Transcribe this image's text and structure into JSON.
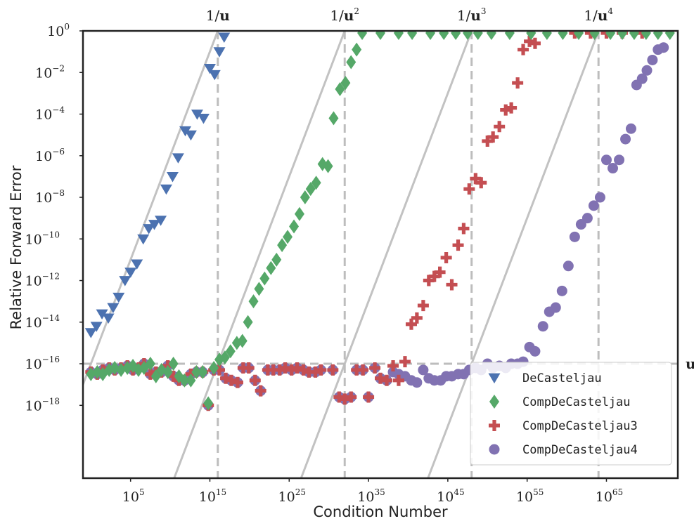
{
  "chart_data": {
    "type": "scatter",
    "xlabel": "Condition Number",
    "ylabel": "Relative Forward Error",
    "xscale": "log",
    "yscale": "log",
    "xlim_exp": [
      -1,
      74
    ],
    "ylim_exp": [
      -21.5,
      0
    ],
    "x_tick_exponents": [
      5,
      15,
      25,
      35,
      45,
      55,
      65
    ],
    "y_tick_exponents": [
      0,
      -2,
      -4,
      -6,
      -8,
      -10,
      -12,
      -14,
      -16,
      -18
    ],
    "grid": false,
    "legend_position": "lower-right",
    "reference_lines": {
      "vertical": [
        {
          "label_base": "1/",
          "label_sym": "u",
          "label_sup": "",
          "x_exp": 16
        },
        {
          "label_base": "1/",
          "label_sym": "u",
          "label_sup": "2",
          "x_exp": 32
        },
        {
          "label_base": "1/",
          "label_sym": "u",
          "label_sup": "3",
          "x_exp": 48
        },
        {
          "label_base": "1/",
          "label_sym": "u",
          "label_sup": "4",
          "x_exp": 64
        }
      ],
      "horizontal": {
        "label": "u",
        "y_exp": -16
      },
      "diagonal_offsets": [
        -16,
        -32,
        -48,
        -64
      ]
    },
    "series": [
      {
        "name": "DeCasteljau",
        "marker": "triangle-down",
        "color": "#4c72b0",
        "points": [
          [
            0.0,
            -14.5
          ],
          [
            0.7,
            -14.2
          ],
          [
            1.4,
            -13.6
          ],
          [
            2.2,
            -13.8
          ],
          [
            2.8,
            -13.3
          ],
          [
            3.5,
            -12.8
          ],
          [
            4.3,
            -12.0
          ],
          [
            5.0,
            -11.6
          ],
          [
            5.8,
            -11.2
          ],
          [
            6.6,
            -10.0
          ],
          [
            7.3,
            -9.5
          ],
          [
            8.0,
            -9.3
          ],
          [
            8.8,
            -9.1
          ],
          [
            9.5,
            -7.6
          ],
          [
            10.3,
            -7.0
          ],
          [
            11.0,
            -6.1
          ],
          [
            11.9,
            -4.8
          ],
          [
            12.6,
            -5.0
          ],
          [
            13.4,
            -4.0
          ],
          [
            14.2,
            -4.2
          ],
          [
            15.0,
            -1.8
          ],
          [
            15.6,
            -2.1
          ],
          [
            16.2,
            -1.0
          ],
          [
            16.8,
            -0.3
          ]
        ]
      },
      {
        "name": "CompDeCasteljau",
        "marker": "diamond",
        "color": "#55a868",
        "points": [
          [
            0.0,
            -16.5
          ],
          [
            0.8,
            -16.4
          ],
          [
            1.5,
            -16.5
          ],
          [
            2.3,
            -16.3
          ],
          [
            3.0,
            -16.2
          ],
          [
            3.8,
            -16.3
          ],
          [
            4.6,
            -16.2
          ],
          [
            5.3,
            -16.1
          ],
          [
            6.0,
            -16.3
          ],
          [
            6.7,
            -16.2
          ],
          [
            7.5,
            -16.0
          ],
          [
            8.2,
            -16.6
          ],
          [
            8.9,
            -16.3
          ],
          [
            9.7,
            -16.4
          ],
          [
            10.4,
            -16.0
          ],
          [
            11.1,
            -16.6
          ],
          [
            11.8,
            -16.8
          ],
          [
            12.6,
            -16.8
          ],
          [
            13.3,
            -16.4
          ],
          [
            14.1,
            -16.4
          ],
          [
            14.8,
            -17.9
          ],
          [
            15.5,
            -16.2
          ],
          [
            16.2,
            -15.8
          ],
          [
            16.9,
            -15.7
          ],
          [
            17.6,
            -15.4
          ],
          [
            18.4,
            -15.0
          ],
          [
            19.1,
            -14.9
          ],
          [
            19.8,
            -14.0
          ],
          [
            20.5,
            -13.0
          ],
          [
            21.2,
            -12.4
          ],
          [
            21.9,
            -11.9
          ],
          [
            22.7,
            -11.4
          ],
          [
            23.4,
            -11.0
          ],
          [
            24.1,
            -10.3
          ],
          [
            24.8,
            -9.9
          ],
          [
            25.6,
            -9.4
          ],
          [
            26.3,
            -8.8
          ],
          [
            27.0,
            -8.0
          ],
          [
            27.7,
            -7.6
          ],
          [
            28.4,
            -7.3
          ],
          [
            29.2,
            -6.4
          ],
          [
            29.9,
            -6.5
          ],
          [
            30.6,
            -4.2
          ],
          [
            31.4,
            -2.8
          ],
          [
            32.1,
            -2.5
          ],
          [
            32.8,
            -1.5
          ],
          [
            33.5,
            -0.9
          ],
          [
            34.2,
            -0.1
          ],
          [
            36.5,
            -0.1
          ],
          [
            38.8,
            -0.1
          ],
          [
            40.5,
            -0.1
          ],
          [
            42.8,
            -0.1
          ],
          [
            44.5,
            -0.1
          ],
          [
            46.0,
            -0.1
          ],
          [
            47.5,
            -0.1
          ],
          [
            48.8,
            -0.1
          ],
          [
            50.5,
            -0.1
          ],
          [
            52.8,
            -0.1
          ],
          [
            55.5,
            -0.1
          ],
          [
            57.5,
            -0.1
          ],
          [
            59.5,
            -0.1
          ],
          [
            61.5,
            -0.1
          ],
          [
            63.5,
            -0.1
          ],
          [
            65.5,
            -0.1
          ],
          [
            67.0,
            -0.1
          ],
          [
            68.5,
            -0.1
          ],
          [
            70.0,
            -0.1
          ],
          [
            71.5,
            -0.1
          ],
          [
            73.0,
            -0.1
          ]
        ]
      },
      {
        "name": "CompDeCasteljau3",
        "marker": "plus",
        "color": "#c44e52",
        "points": [
          [
            0.0,
            -16.4
          ],
          [
            0.8,
            -16.5
          ],
          [
            1.5,
            -16.3
          ],
          [
            2.3,
            -16.2
          ],
          [
            3.0,
            -16.3
          ],
          [
            3.8,
            -16.2
          ],
          [
            4.6,
            -16.1
          ],
          [
            5.3,
            -16.3
          ],
          [
            6.0,
            -16.2
          ],
          [
            6.7,
            -16.0
          ],
          [
            7.5,
            -16.5
          ],
          [
            8.2,
            -16.4
          ],
          [
            8.9,
            -16.4
          ],
          [
            9.7,
            -16.1
          ],
          [
            10.4,
            -16.6
          ],
          [
            11.1,
            -16.8
          ],
          [
            11.8,
            -16.8
          ],
          [
            12.6,
            -16.5
          ],
          [
            13.3,
            -16.4
          ],
          [
            14.1,
            -16.4
          ],
          [
            14.8,
            -18.0
          ],
          [
            15.5,
            -16.3
          ],
          [
            16.2,
            -16.3
          ],
          [
            17.0,
            -16.7
          ],
          [
            17.7,
            -16.8
          ],
          [
            18.5,
            -16.9
          ],
          [
            19.2,
            -16.2
          ],
          [
            19.9,
            -16.2
          ],
          [
            20.7,
            -16.8
          ],
          [
            21.4,
            -17.3
          ],
          [
            22.3,
            -16.3
          ],
          [
            23.0,
            -16.3
          ],
          [
            23.8,
            -16.3
          ],
          [
            24.5,
            -16.2
          ],
          [
            25.3,
            -16.3
          ],
          [
            26.0,
            -16.2
          ],
          [
            26.8,
            -16.3
          ],
          [
            27.5,
            -16.4
          ],
          [
            28.3,
            -16.4
          ],
          [
            29.0,
            -16.3
          ],
          [
            30.5,
            -16.3
          ],
          [
            31.3,
            -17.6
          ],
          [
            32.0,
            -17.7
          ],
          [
            32.8,
            -17.6
          ],
          [
            33.5,
            -16.3
          ],
          [
            34.3,
            -16.3
          ],
          [
            35.0,
            -17.6
          ],
          [
            35.8,
            -16.2
          ],
          [
            36.5,
            -16.7
          ],
          [
            37.3,
            -16.8
          ],
          [
            38.1,
            -16.1
          ],
          [
            38.8,
            -16.8
          ],
          [
            39.6,
            -15.9
          ],
          [
            40.4,
            -14.1
          ],
          [
            41.1,
            -13.8
          ],
          [
            41.9,
            -13.2
          ],
          [
            42.6,
            -12.0
          ],
          [
            43.3,
            -11.8
          ],
          [
            44.0,
            -11.6
          ],
          [
            44.8,
            -10.9
          ],
          [
            45.5,
            -12.2
          ],
          [
            46.3,
            -10.3
          ],
          [
            47.0,
            -9.5
          ],
          [
            47.7,
            -7.6
          ],
          [
            48.5,
            -7.1
          ],
          [
            49.2,
            -7.3
          ],
          [
            50.0,
            -5.3
          ],
          [
            50.7,
            -5.1
          ],
          [
            51.5,
            -4.6
          ],
          [
            52.3,
            -3.8
          ],
          [
            53.0,
            -3.7
          ],
          [
            53.8,
            -2.5
          ],
          [
            54.5,
            -0.9
          ],
          [
            55.3,
            -0.5
          ],
          [
            56.0,
            -0.6
          ],
          [
            61.0,
            -0.1
          ],
          [
            63.0,
            -0.1
          ],
          [
            65.0,
            -0.1
          ],
          [
            67.0,
            -0.1
          ],
          [
            69.5,
            -0.1
          ]
        ]
      },
      {
        "name": "CompDeCasteljau4",
        "marker": "circle",
        "color": "#8172b2",
        "points": [
          [
            0.0,
            -16.4
          ],
          [
            0.8,
            -16.5
          ],
          [
            1.5,
            -16.3
          ],
          [
            2.3,
            -16.2
          ],
          [
            3.0,
            -16.3
          ],
          [
            3.8,
            -16.2
          ],
          [
            4.6,
            -16.1
          ],
          [
            5.3,
            -16.3
          ],
          [
            6.0,
            -16.2
          ],
          [
            6.7,
            -16.0
          ],
          [
            7.5,
            -16.5
          ],
          [
            8.2,
            -16.4
          ],
          [
            8.9,
            -16.4
          ],
          [
            9.7,
            -16.1
          ],
          [
            10.4,
            -16.6
          ],
          [
            11.1,
            -16.8
          ],
          [
            11.8,
            -16.8
          ],
          [
            12.6,
            -16.5
          ],
          [
            13.3,
            -16.4
          ],
          [
            14.1,
            -16.4
          ],
          [
            14.8,
            -18.0
          ],
          [
            15.5,
            -16.3
          ],
          [
            16.2,
            -16.3
          ],
          [
            17.0,
            -16.7
          ],
          [
            17.7,
            -16.8
          ],
          [
            18.5,
            -16.9
          ],
          [
            19.2,
            -16.2
          ],
          [
            19.9,
            -16.2
          ],
          [
            20.7,
            -16.8
          ],
          [
            21.4,
            -17.3
          ],
          [
            22.3,
            -16.3
          ],
          [
            23.0,
            -16.3
          ],
          [
            23.8,
            -16.3
          ],
          [
            24.5,
            -16.2
          ],
          [
            25.3,
            -16.3
          ],
          [
            26.0,
            -16.2
          ],
          [
            26.8,
            -16.3
          ],
          [
            27.5,
            -16.4
          ],
          [
            28.3,
            -16.4
          ],
          [
            29.0,
            -16.3
          ],
          [
            30.5,
            -16.3
          ],
          [
            31.3,
            -17.6
          ],
          [
            32.0,
            -17.7
          ],
          [
            32.8,
            -17.6
          ],
          [
            33.5,
            -16.3
          ],
          [
            34.3,
            -16.3
          ],
          [
            35.0,
            -17.6
          ],
          [
            35.8,
            -16.2
          ],
          [
            36.5,
            -16.7
          ],
          [
            37.3,
            -16.8
          ],
          [
            38.1,
            -16.4
          ],
          [
            38.8,
            -16.5
          ],
          [
            39.6,
            -16.6
          ],
          [
            40.4,
            -16.8
          ],
          [
            41.1,
            -16.9
          ],
          [
            41.9,
            -16.3
          ],
          [
            42.6,
            -16.7
          ],
          [
            43.3,
            -16.8
          ],
          [
            44.1,
            -16.8
          ],
          [
            44.8,
            -16.6
          ],
          [
            45.5,
            -16.6
          ],
          [
            46.3,
            -16.5
          ],
          [
            47.0,
            -16.5
          ],
          [
            47.7,
            -16.3
          ],
          [
            48.5,
            -16.2
          ],
          [
            49.2,
            -16.3
          ],
          [
            50.0,
            -16.0
          ],
          [
            50.7,
            -16.2
          ],
          [
            51.5,
            -16.1
          ],
          [
            52.3,
            -16.2
          ],
          [
            53.0,
            -16.0
          ],
          [
            53.8,
            -16.0
          ],
          [
            54.5,
            -15.9
          ],
          [
            55.3,
            -15.2
          ],
          [
            56.0,
            -15.4
          ],
          [
            57.0,
            -14.2
          ],
          [
            57.8,
            -13.5
          ],
          [
            58.6,
            -13.3
          ],
          [
            59.4,
            -12.5
          ],
          [
            60.2,
            -11.3
          ],
          [
            61.0,
            -9.9
          ],
          [
            61.8,
            -9.3
          ],
          [
            62.6,
            -9.0
          ],
          [
            63.4,
            -8.4
          ],
          [
            64.2,
            -8.0
          ],
          [
            65.0,
            -6.2
          ],
          [
            65.8,
            -6.6
          ],
          [
            66.6,
            -6.2
          ],
          [
            67.4,
            -5.2
          ],
          [
            68.1,
            -4.7
          ],
          [
            68.8,
            -2.6
          ],
          [
            69.5,
            -2.3
          ],
          [
            70.1,
            -1.9
          ],
          [
            70.8,
            -1.4
          ],
          [
            71.5,
            -0.9
          ],
          [
            72.2,
            -0.8
          ]
        ]
      }
    ]
  }
}
